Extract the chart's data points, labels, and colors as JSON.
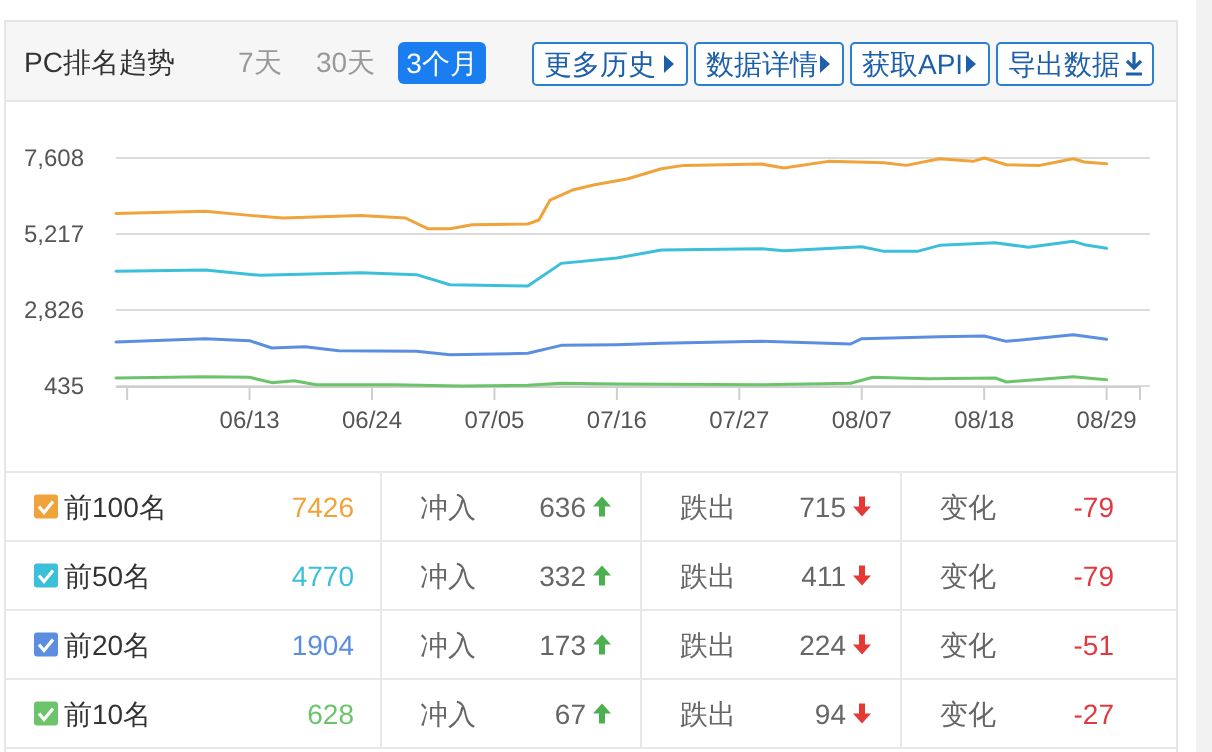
{
  "chart_data": {
    "type": "line",
    "title": "PC排名趋势",
    "annotations": [
      "7天",
      "30天",
      "3个月",
      "更多历史",
      "数据详情",
      "获取API",
      "导出数据",
      "7426",
      "冲入",
      "636",
      "跌出",
      "715",
      "变化",
      "-79",
      "4770",
      "冲入",
      "332",
      "跌出",
      "411",
      "变化",
      "-79",
      "1904",
      "冲入",
      "173",
      "跌出",
      "224",
      "变化",
      "-51",
      "628",
      "冲入",
      "67",
      "跌出",
      "94",
      "变化",
      "-27"
    ],
    "xlim": [
      "--06-01",
      "--09-01"
    ],
    "xticks": [
      {
        "value": "--06-02",
        "label": null
      },
      {
        "value": "--06-13",
        "label": "06/13"
      },
      {
        "value": "--06-24",
        "label": "06/24"
      },
      {
        "value": "--07-05",
        "label": "07/05"
      },
      {
        "value": "--07-16",
        "label": "07/16"
      },
      {
        "value": "--07-27",
        "label": "07/27"
      },
      {
        "value": "--08-07",
        "label": "08/07"
      },
      {
        "value": "--08-18",
        "label": "08/18"
      },
      {
        "value": "--08-29",
        "label": "08/29"
      },
      {
        "value": "--09-01",
        "label": null
      }
    ],
    "ylim": [
      435,
      7608
    ],
    "yticks": [
      {
        "value": 435,
        "label": "435"
      },
      {
        "value": 2826,
        "label": "2,826"
      },
      {
        "value": 5217,
        "label": "5,217"
      },
      {
        "value": 7608,
        "label": "7,608"
      }
    ],
    "grid": "y",
    "legend": "bottom",
    "series": [
      {
        "name": "前100名",
        "color": "#f0a33a",
        "x": [
          "--06-01",
          "--06-09",
          "--06-13",
          "--06-16",
          "--06-23",
          "--06-27",
          "--06-29",
          "--07-01",
          "--07-03",
          "--07-08",
          "--07-09",
          "--07-10",
          "--07-12",
          "--07-14",
          "--07-17",
          "--07-20",
          "--07-22",
          "--07-29",
          "--07-31",
          "--08-04",
          "--08-09",
          "--08-11",
          "--08-14",
          "--08-17",
          "--08-18",
          "--08-20",
          "--08-23",
          "--08-26",
          "--08-27",
          "--08-29"
        ],
        "values": [
          5866,
          5929,
          5803,
          5720,
          5803,
          5720,
          5384,
          5384,
          5510,
          5531,
          5657,
          6286,
          6600,
          6768,
          6957,
          7271,
          7376,
          7418,
          7292,
          7502,
          7460,
          7376,
          7586,
          7502,
          7607,
          7397,
          7376,
          7586,
          7481,
          7426
        ]
      },
      {
        "name": "前50名",
        "color": "#3cbfd9",
        "x": [
          "--06-01",
          "--06-09",
          "--06-14",
          "--06-23",
          "--06-28",
          "--07-01",
          "--07-08",
          "--07-11",
          "--07-16",
          "--07-20",
          "--07-29",
          "--07-31",
          "--08-07",
          "--08-09",
          "--08-12",
          "--08-14",
          "--08-19",
          "--08-22",
          "--08-26",
          "--08-27",
          "--08-29"
        ],
        "values": [
          4042,
          4084,
          3916,
          4000,
          3937,
          3622,
          3580,
          4293,
          4461,
          4713,
          4755,
          4692,
          4818,
          4671,
          4671,
          4860,
          4944,
          4797,
          4986,
          4881,
          4770
        ]
      },
      {
        "name": "前20名",
        "color": "#5b8ee0",
        "x": [
          "--06-01",
          "--06-09",
          "--06-13",
          "--06-15",
          "--06-18",
          "--06-21",
          "--06-28",
          "--07-01",
          "--07-08",
          "--07-11",
          "--07-16",
          "--07-20",
          "--07-29",
          "--08-06",
          "--08-07",
          "--08-14",
          "--08-18",
          "--08-20",
          "--08-26",
          "--08-29"
        ],
        "values": [
          1819,
          1924,
          1861,
          1630,
          1672,
          1546,
          1525,
          1421,
          1463,
          1714,
          1735,
          1777,
          1840,
          1756,
          1924,
          1987,
          2008,
          1840,
          2050,
          1904
        ]
      },
      {
        "name": "前10名",
        "color": "#6cc46a",
        "x": [
          "--06-01",
          "--06-09",
          "--06-13",
          "--06-15",
          "--06-17",
          "--06-19",
          "--06-26",
          "--07-02",
          "--07-08",
          "--07-11",
          "--07-16",
          "--07-29",
          "--08-06",
          "--08-08",
          "--08-13",
          "--08-19",
          "--08-20",
          "--08-26",
          "--08-29"
        ],
        "values": [
          687,
          729,
          708,
          540,
          603,
          477,
          477,
          435,
          456,
          519,
          498,
          477,
          519,
          708,
          666,
          687,
          561,
          729,
          628
        ]
      }
    ]
  }
}
